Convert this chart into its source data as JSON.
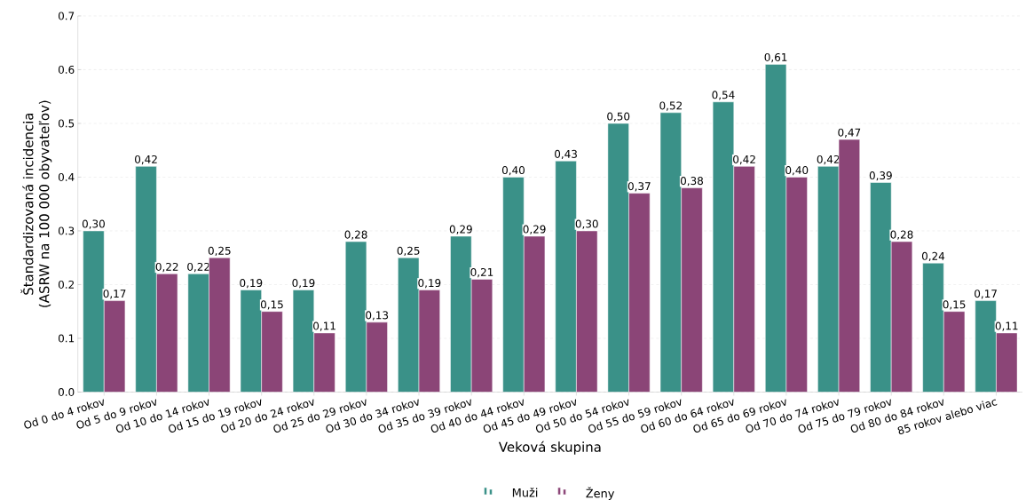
{
  "chart_data": {
    "type": "bar",
    "xlabel": "Veková skupina",
    "ylabel": "Štandardizovaná incidencia (ASRW na 100 000 obyvateľov)",
    "categories": [
      "Od 0 do 4 rokov",
      "Od 5 do 9 rokov",
      "Od 10 do 14 rokov",
      "Od 15 do 19 rokov",
      "Od 20 do 24 rokov",
      "Od 25 do 29 rokov",
      "Od 30 do 34 rokov",
      "Od 35 do 39 rokov",
      "Od 40 do 44 rokov",
      "Od 45 do 49 rokov",
      "Od 50 do 54 rokov",
      "Od 55 do 59 rokov",
      "Od 60 do 64 rokov",
      "Od 65 do 69 rokov",
      "Od 70 do 74 rokov",
      "Od 75 do 79 rokov",
      "Od 80 do 84 rokov",
      "85 rokov alebo viac"
    ],
    "series": [
      {
        "name": "Muži",
        "color": "#3a9188",
        "values": [
          0.3,
          0.42,
          0.22,
          0.19,
          0.19,
          0.28,
          0.25,
          0.29,
          0.4,
          0.43,
          0.5,
          0.52,
          0.54,
          0.61,
          0.42,
          0.39,
          0.24,
          0.17
        ],
        "value_labels": [
          "0,30",
          "0,42",
          "0,22",
          "0,19",
          "0,19",
          "0,28",
          "0,25",
          "0,29",
          "0,40",
          "0,43",
          "0,50",
          "0,52",
          "0,54",
          "0,61",
          "0,42",
          "0,39",
          "0,24",
          "0,17"
        ]
      },
      {
        "name": "Ženy",
        "color": "#8b4577",
        "values": [
          0.17,
          0.22,
          0.25,
          0.15,
          0.11,
          0.13,
          0.19,
          0.21,
          0.29,
          0.3,
          0.37,
          0.38,
          0.42,
          0.4,
          0.47,
          0.28,
          0.15,
          0.11
        ],
        "value_labels": [
          "0,17",
          "0,22",
          "0,25",
          "0,15",
          "0,11",
          "0,13",
          "0,19",
          "0,21",
          "0,29",
          "0,30",
          "0,37",
          "0,38",
          "0,42",
          "0,40",
          "0,47",
          "0,28",
          "0,15",
          "0,11"
        ]
      }
    ],
    "ylim": [
      0,
      0.7
    ],
    "yticks": [
      {
        "value": 0,
        "label": "0.0"
      },
      0.1,
      0.2,
      0.3,
      0.4,
      0.5,
      0.6,
      0.7
    ],
    "grid": "y",
    "legend": "bottom"
  }
}
